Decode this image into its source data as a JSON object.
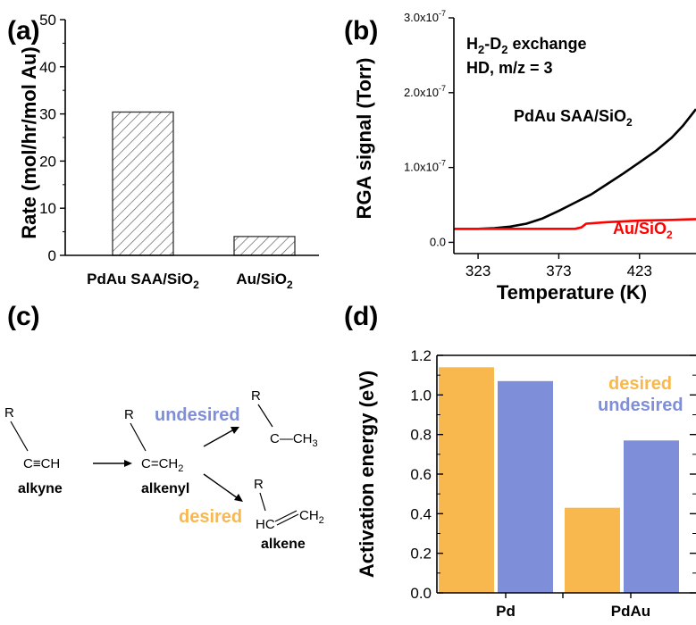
{
  "panels": {
    "a": "(a)",
    "b": "(b)",
    "c": "(c)",
    "d": "(d)"
  },
  "colors": {
    "black": "#000000",
    "red": "#ff0000",
    "orange": "#f9b84e",
    "blue": "#7f8ed8"
  },
  "chart_data": [
    {
      "type": "bar",
      "panel": "a",
      "categories": [
        "PdAu SAA/SiO",
        "Au/SiO"
      ],
      "category_subscripts": [
        "2",
        "2"
      ],
      "values": [
        30.4,
        4.0
      ],
      "ylabel": "Rate (mol/hr/mol Au)",
      "xlabel": "",
      "ylim": [
        0,
        50
      ],
      "yticks": [
        "0",
        "10",
        "20",
        "30",
        "40",
        "50"
      ],
      "fill": "hatched"
    },
    {
      "type": "line",
      "panel": "b",
      "xlabel": "Temperature (K)",
      "ylabel": "RGA signal (Torr)",
      "xticks": [
        "323",
        "373",
        "423"
      ],
      "yticks": [
        {
          "main": "0.0",
          "exp": ""
        },
        {
          "main": "1.0x10",
          "exp": "-7"
        },
        {
          "main": "2.0x10",
          "exp": "-7"
        },
        {
          "main": "3.0x10",
          "exp": "-7"
        }
      ],
      "xlim": [
        308,
        458
      ],
      "ylim": [
        -1.5e-08,
        3e-07
      ],
      "annotation_line1": {
        "a": "H",
        "sub1": "2",
        "b": "-D",
        "sub2": "2",
        "c": " exchange"
      },
      "annotation_line2": "HD, m/z = 3",
      "series": [
        {
          "name": "PdAu SAA/SiO",
          "name_sub": "2",
          "color": "#000000",
          "x": [
            308,
            323,
            333,
            343,
            353,
            363,
            373,
            383,
            393,
            403,
            413,
            423,
            433,
            443,
            450,
            458
          ],
          "y": [
            1.8e-08,
            1.8e-08,
            1.9e-08,
            2.1e-08,
            2.5e-08,
            3.2e-08,
            4.2e-08,
            5.3e-08,
            6.4e-08,
            7.8e-08,
            9.2e-08,
            1.07e-07,
            1.22e-07,
            1.4e-07,
            1.56e-07,
            1.78e-07
          ]
        },
        {
          "name": "Au/SiO",
          "name_sub": "2",
          "color": "#ff0000",
          "x": [
            308,
            323,
            343,
            363,
            383,
            387,
            390,
            403,
            423,
            443,
            458
          ],
          "y": [
            1.8e-08,
            1.8e-08,
            1.8e-08,
            1.8e-08,
            1.8e-08,
            2e-08,
            2.5e-08,
            2.7e-08,
            2.9e-08,
            3e-08,
            3.1e-08
          ]
        }
      ]
    },
    {
      "type": "bar",
      "panel": "d",
      "categories": [
        "Pd",
        "PdAu"
      ],
      "ylabel": "Activation energy (eV)",
      "xlabel": "",
      "ylim": [
        0,
        1.2
      ],
      "yticks": [
        "0.0",
        "0.2",
        "0.4",
        "0.6",
        "0.8",
        "1.0",
        "1.2"
      ],
      "legend": [
        "desired",
        "undesired"
      ],
      "legend_position": "top-right",
      "series": [
        {
          "name": "desired",
          "color": "#f9b84e",
          "values": [
            1.14,
            0.43
          ]
        },
        {
          "name": "undesired",
          "color": "#7f8ed8",
          "values": [
            1.07,
            0.77
          ]
        }
      ]
    }
  ],
  "scheme": {
    "r": "R",
    "alkyne_group": "C≡CH",
    "alkyne_label": "alkyne",
    "alkenyl_group": "C=CH",
    "alkenyl_sub": "2",
    "alkenyl_label": "alkenyl",
    "undesired_label": "undesired",
    "desired_label": "desired",
    "ethyl_group": "C—CH",
    "ethyl_sub": "3",
    "alkene_hc": "HC",
    "alkene_ch": "CH",
    "alkene_sub": "2",
    "alkene_label": "alkene"
  }
}
